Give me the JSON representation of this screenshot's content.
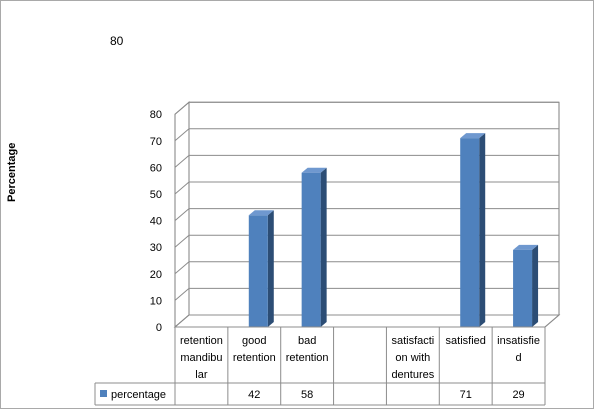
{
  "corner_value": "80",
  "chart_data": {
    "type": "bar",
    "title": "",
    "xlabel": "",
    "ylabel": "Percentage",
    "ylim": [
      0,
      80
    ],
    "yticks": [
      0,
      10,
      20,
      30,
      40,
      50,
      60,
      70,
      80
    ],
    "grid": true,
    "three_d": true,
    "legend_placement": "data-table",
    "categories": [
      "retention mandibular",
      "good retention",
      "bad retention",
      "",
      "satisfaction with dentures",
      "satisfied",
      "insatisfied"
    ],
    "category_lines": [
      [
        "retention",
        "mandibu",
        "lar"
      ],
      [
        "good",
        "retention"
      ],
      [
        "bad",
        "retention"
      ],
      [],
      [
        "satisfacti",
        "on with",
        "dentures"
      ],
      [
        "satisfied"
      ],
      [
        "insatisfie",
        "d"
      ]
    ],
    "series": [
      {
        "name": "percentage",
        "color": "#4f81bd",
        "values": [
          null,
          42,
          58,
          null,
          null,
          71,
          29
        ],
        "value_labels": [
          "",
          "42",
          "58",
          "",
          "",
          "71",
          "29"
        ]
      }
    ]
  }
}
